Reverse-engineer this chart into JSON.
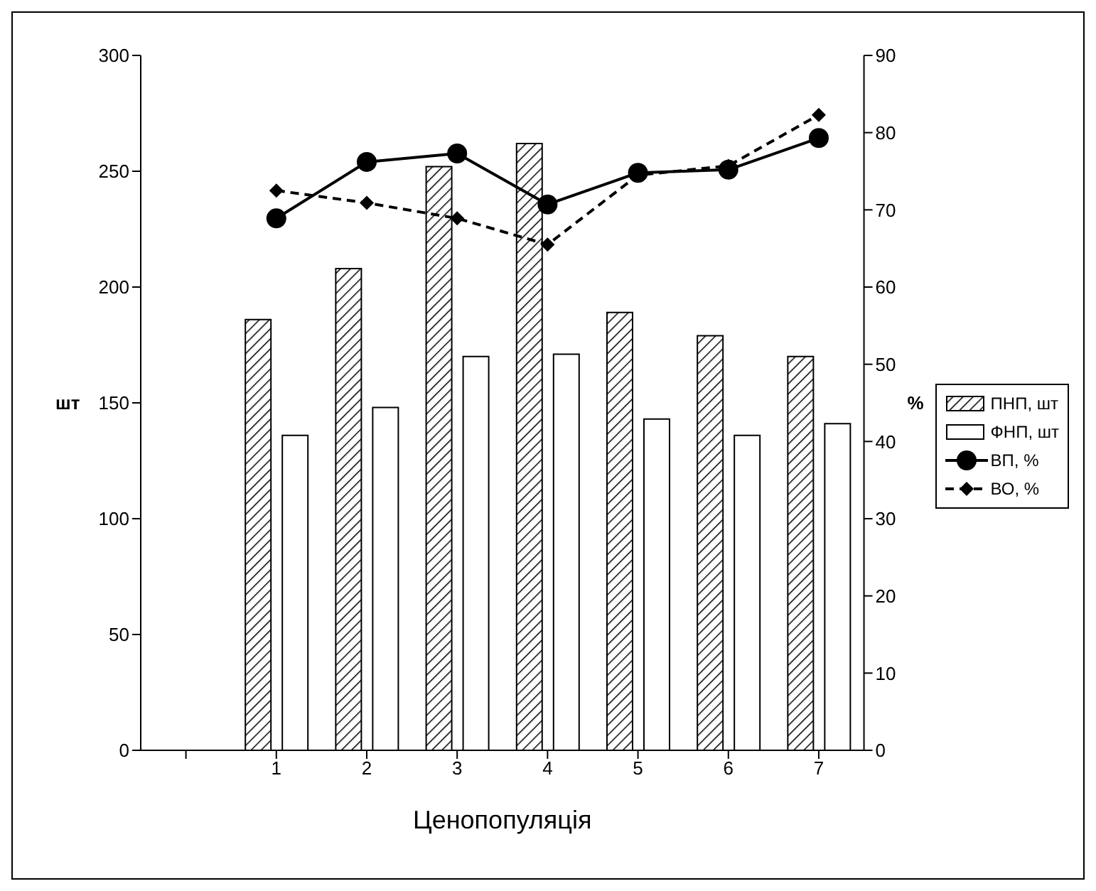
{
  "chart_data": {
    "type": "bar",
    "xlabel": "Ценопопуляція",
    "ylabel": "шт",
    "y2label": "%",
    "categories": [
      null,
      "1",
      "2",
      "3",
      "4",
      "5",
      "6",
      "7"
    ],
    "series": [
      {
        "name": "ПНП, шт",
        "color": "#000000",
        "values": [
          null,
          186,
          208,
          252,
          262,
          189,
          179,
          170
        ]
      },
      {
        "name": "ФНП, шт",
        "color": "#ffffff",
        "values": [
          null,
          136,
          148,
          170,
          171,
          143,
          136,
          141
        ]
      },
      {
        "name": "ВП, %",
        "type": "line",
        "axis": "y2",
        "color": "#000000",
        "marker": "circle",
        "line_style": "solid",
        "values": [
          null,
          68.9,
          76.2,
          77.3,
          70.7,
          74.8,
          75.2,
          79.3
        ]
      },
      {
        "name": "ВО, %",
        "type": "line",
        "axis": "y2",
        "color": "#000000",
        "marker": "diamond",
        "line_style": "dashed",
        "values": [
          null,
          72.5,
          70.9,
          68.9,
          65.5,
          74.5,
          75.7,
          82.3
        ]
      }
    ],
    "ylim": [
      0,
      300
    ],
    "yticks": [
      0,
      50,
      100,
      150,
      200,
      250,
      300
    ],
    "y2lim": [
      0,
      90
    ],
    "y2ticks": [
      0,
      10,
      20,
      30,
      40,
      50,
      60,
      70,
      80,
      90
    ],
    "legend": "right"
  }
}
